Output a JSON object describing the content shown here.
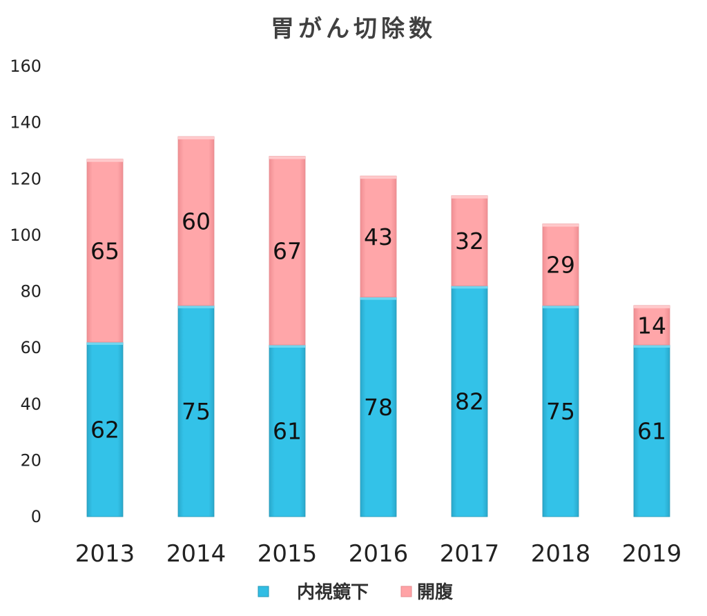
{
  "chart_data": {
    "type": "bar",
    "stacked": true,
    "title": "胃がん切除数",
    "xlabel": "",
    "ylabel": "",
    "categories": [
      "2013",
      "2014",
      "2015",
      "2016",
      "2017",
      "2018",
      "2019"
    ],
    "series": [
      {
        "name": "内視鏡下",
        "values": [
          62,
          75,
          61,
          78,
          82,
          75,
          61
        ],
        "color": "#31bde4"
      },
      {
        "name": "開腹",
        "values": [
          65,
          60,
          67,
          43,
          32,
          29,
          14
        ],
        "color": "#ffa3a6"
      }
    ],
    "ylim": [
      0,
      160
    ],
    "yticks": [
      "0",
      "20",
      "40",
      "60",
      "80",
      "100",
      "120",
      "140",
      "160"
    ],
    "grid": false,
    "legend": "bottom",
    "data_labels": true
  }
}
